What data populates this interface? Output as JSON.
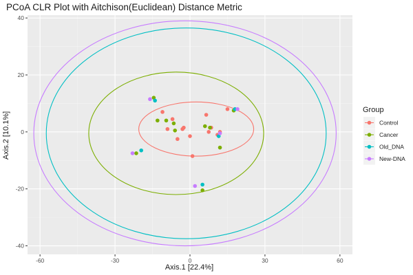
{
  "chart_data": {
    "type": "scatter",
    "title": "PCoA CLR Plot with Aitchison(Euclidean) Distance Metric",
    "xlabel": "Axis.1   [22.4%]",
    "ylabel": "Axis.2   [10.1%]",
    "xlim": [
      -65,
      65
    ],
    "ylim": [
      -43,
      41
    ],
    "x_ticks": [
      -60,
      -30,
      0,
      30,
      60
    ],
    "y_ticks": [
      -40,
      -20,
      0,
      20,
      40
    ],
    "grid": true,
    "legend": {
      "title": "Group",
      "position": "right"
    },
    "series": [
      {
        "name": "Control",
        "color": "#F8766D",
        "points": [
          {
            "x": -11,
            "y": 7
          },
          {
            "x": -7,
            "y": 4.5
          },
          {
            "x": -9,
            "y": 1
          },
          {
            "x": -5,
            "y": -2.5
          },
          {
            "x": -3,
            "y": 1
          },
          {
            "x": -2.5,
            "y": 1.5
          },
          {
            "x": 0,
            "y": -1.5
          },
          {
            "x": 1,
            "y": -8.5
          },
          {
            "x": 6.5,
            "y": 6
          },
          {
            "x": 7.5,
            "y": 0
          },
          {
            "x": 8.5,
            "y": 1.5
          },
          {
            "x": 12,
            "y": 0
          },
          {
            "x": 11,
            "y": -1
          },
          {
            "x": 15,
            "y": 8
          }
        ],
        "ellipse": {
          "cx": 2.5,
          "cy": 1,
          "rx": 23,
          "ry": 9.5
        }
      },
      {
        "name": "Cancer",
        "color": "#7CAE00",
        "points": [
          {
            "x": -14.5,
            "y": 12
          },
          {
            "x": -13,
            "y": 4
          },
          {
            "x": -9.5,
            "y": 4
          },
          {
            "x": -6.5,
            "y": 3
          },
          {
            "x": -6,
            "y": 0.5
          },
          {
            "x": 6,
            "y": 2
          },
          {
            "x": 8,
            "y": 1.5
          },
          {
            "x": 12,
            "y": -5.5
          },
          {
            "x": 5,
            "y": -20.5
          },
          {
            "x": -21.5,
            "y": -7.5
          },
          {
            "x": 17.5,
            "y": 7.5
          }
        ],
        "ellipse": {
          "cx": -5.5,
          "cy": -0.5,
          "rx": 35,
          "ry": 21.5
        }
      },
      {
        "name": "Old_DNA",
        "color": "#00BFC4",
        "points": [
          {
            "x": -14,
            "y": 11
          },
          {
            "x": -19.5,
            "y": -6.5
          },
          {
            "x": 11.5,
            "y": -1.5
          },
          {
            "x": 5,
            "y": -18.5
          },
          {
            "x": 18,
            "y": 8
          }
        ],
        "ellipse": {
          "cx": -1.5,
          "cy": -0.5,
          "rx": 56,
          "ry": 37
        }
      },
      {
        "name": "New-DNA",
        "color": "#C77CFF",
        "points": [
          {
            "x": -16,
            "y": 11.5
          },
          {
            "x": -23,
            "y": -7.5
          },
          {
            "x": 12,
            "y": -0.5
          },
          {
            "x": 2,
            "y": -19
          },
          {
            "x": 19,
            "y": 8
          }
        ],
        "ellipse": {
          "cx": -2,
          "cy": -0.5,
          "rx": 60.5,
          "ry": 39.5
        }
      }
    ]
  }
}
